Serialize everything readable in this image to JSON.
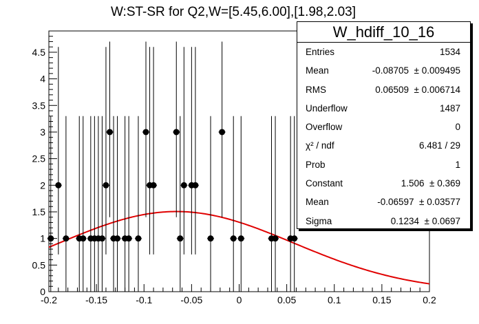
{
  "chart_data": {
    "type": "scatter",
    "title": "W:ST-SR for Q2,W=[5.45,6.00],[1.98,2.03]",
    "xlim": [
      -0.2,
      0.2
    ],
    "ylim": [
      0,
      4.9
    ],
    "x_ticks": [
      -0.2,
      -0.15,
      -0.1,
      -0.05,
      0,
      0.05,
      0.1,
      0.15,
      0.2
    ],
    "x_tick_labels": [
      "-0.2",
      "-0.15",
      "-0.1",
      "-0.05",
      "0",
      "0.05",
      "0.1",
      "0.15",
      "0.2"
    ],
    "y_ticks": [
      0,
      0.5,
      1,
      1.5,
      2,
      2.5,
      3,
      3.5,
      4,
      4.5
    ],
    "y_tick_labels": [
      "0",
      "0.5",
      "1",
      "1.5",
      "2",
      "2.5",
      "3",
      "3.5",
      "4",
      "4.5"
    ],
    "series": [
      {
        "marker": "filled-circle",
        "color": "#000000",
        "error_bars": "poisson",
        "points": [
          {
            "x": -0.198,
            "y": 1,
            "err_low": 1,
            "err_high": 2.3
          },
          {
            "x": -0.19,
            "y": 2,
            "err_low": 1.3,
            "err_high": 2.6
          },
          {
            "x": -0.182,
            "y": 1,
            "err_low": 1,
            "err_high": 2.3
          },
          {
            "x": -0.168,
            "y": 1,
            "err_low": 1,
            "err_high": 2.3
          },
          {
            "x": -0.164,
            "y": 1,
            "err_low": 1,
            "err_high": 2.3
          },
          {
            "x": -0.156,
            "y": 1,
            "err_low": 1,
            "err_high": 2.3
          },
          {
            "x": -0.152,
            "y": 1,
            "err_low": 1,
            "err_high": 2.3
          },
          {
            "x": -0.148,
            "y": 1,
            "err_low": 1,
            "err_high": 2.3
          },
          {
            "x": -0.144,
            "y": 1,
            "err_low": 1,
            "err_high": 2.3
          },
          {
            "x": -0.14,
            "y": 2,
            "err_low": 1.3,
            "err_high": 2.6
          },
          {
            "x": -0.136,
            "y": 3,
            "err_low": 1.6,
            "err_high": 1.7
          },
          {
            "x": -0.132,
            "y": 1,
            "err_low": 1,
            "err_high": 2.3
          },
          {
            "x": -0.128,
            "y": 1,
            "err_low": 1,
            "err_high": 2.3
          },
          {
            "x": -0.12,
            "y": 1,
            "err_low": 1,
            "err_high": 2.3
          },
          {
            "x": -0.116,
            "y": 1,
            "err_low": 1,
            "err_high": 2.3
          },
          {
            "x": -0.106,
            "y": 1,
            "err_low": 1,
            "err_high": 2.3
          },
          {
            "x": -0.098,
            "y": 3,
            "err_low": 1.6,
            "err_high": 1.7
          },
          {
            "x": -0.094,
            "y": 2,
            "err_low": 1.3,
            "err_high": 2.6
          },
          {
            "x": -0.09,
            "y": 2,
            "err_low": 1.3,
            "err_high": 2.6
          },
          {
            "x": -0.066,
            "y": 3,
            "err_low": 1.6,
            "err_high": 1.7
          },
          {
            "x": -0.062,
            "y": 1,
            "err_low": 1,
            "err_high": 2.3
          },
          {
            "x": -0.058,
            "y": 2,
            "err_low": 1.3,
            "err_high": 2.6
          },
          {
            "x": -0.05,
            "y": 2,
            "err_low": 1.3,
            "err_high": 2.6
          },
          {
            "x": -0.046,
            "y": 2,
            "err_low": 1.3,
            "err_high": 2.6
          },
          {
            "x": -0.03,
            "y": 1,
            "err_low": 1,
            "err_high": 2.3
          },
          {
            "x": -0.018,
            "y": 3,
            "err_low": 1.6,
            "err_high": 1.7
          },
          {
            "x": -0.006,
            "y": 1,
            "err_low": 1,
            "err_high": 2.3
          },
          {
            "x": 0.002,
            "y": 1,
            "err_low": 1,
            "err_high": 2.3
          },
          {
            "x": 0.034,
            "y": 1,
            "err_low": 1,
            "err_high": 2.3
          },
          {
            "x": 0.038,
            "y": 1,
            "err_low": 1,
            "err_high": 2.3
          },
          {
            "x": 0.054,
            "y": 1,
            "err_low": 1,
            "err_high": 2.3
          },
          {
            "x": 0.058,
            "y": 1,
            "err_low": 1,
            "err_high": 2.3
          }
        ]
      },
      {
        "type": "gaussian-fit",
        "color": "#e00000",
        "constant": 1.506,
        "mean": -0.06597,
        "sigma": 0.1234
      }
    ],
    "legend_placement": "top-right"
  },
  "stats_box": {
    "title": "W_hdiff_10_16",
    "rows": [
      {
        "label": "Entries",
        "value": "1534"
      },
      {
        "label": "Mean",
        "value": "-0.08705  ± 0.009495"
      },
      {
        "label": "RMS",
        "value": "0.06509  ± 0.006714"
      },
      {
        "label": "Underflow",
        "value": "1487"
      },
      {
        "label": "Overflow",
        "value": "0"
      },
      {
        "label": "χ² / ndf",
        "value": "6.481 / 29"
      },
      {
        "label": "Prob",
        "value": "1"
      },
      {
        "label": "Constant",
        "value": "1.506  ± 0.369"
      },
      {
        "label": "Mean",
        "value": "-0.06597  ± 0.03577"
      },
      {
        "label": "Sigma",
        "value": "0.1234  ± 0.0697"
      }
    ]
  }
}
